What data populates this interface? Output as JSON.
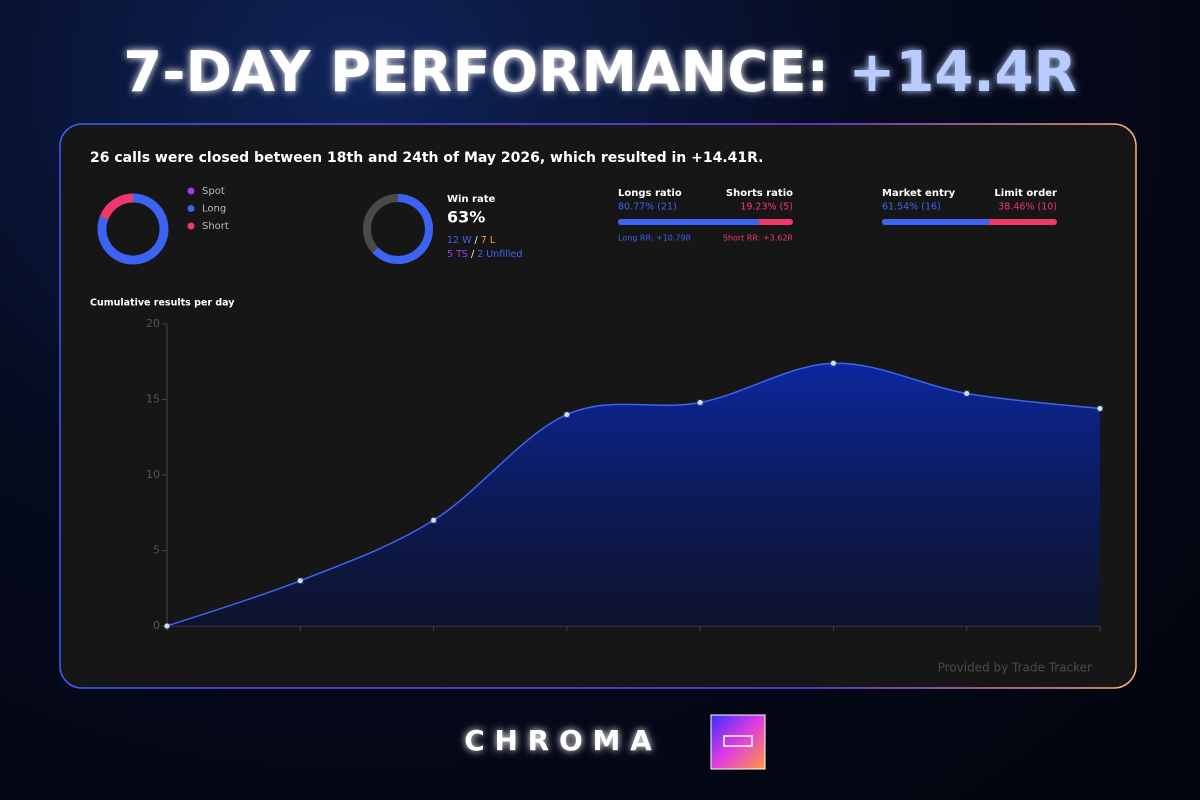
{
  "header": {
    "title": "7-DAY PERFORMANCE:",
    "highlight": "+14.4R"
  },
  "summary": "26 calls were closed between 18th and 24th of May 2026, which resulted in +14.41R.",
  "win_rate": {
    "title": "Win rate",
    "value": 63,
    "value_label": "63%",
    "track_color": "#4a4a4a",
    "color": "#3d63f5",
    "wins": "12 W",
    "losses": "7 L",
    "ts": "5 TS",
    "unfilled": "2 Unfilled",
    "separator": "/"
  },
  "direction_ratio": {
    "left_title": "Longs ratio",
    "right_title": "Shorts ratio",
    "left_value": 80.77,
    "left_label": "80.77% (21)",
    "right_value": 19.23,
    "right_label": "19.23% (5)",
    "left_note": "Long RR: +10.79R",
    "right_note": "Short RR: +3.62R",
    "left_color": "#3d63f5",
    "right_color": "#f0396b"
  },
  "entry_ratio": {
    "left_title": "Market entry",
    "right_title": "Limit order",
    "left_value": 61.54,
    "left_label": "61.54% (16)",
    "right_value": 38.46,
    "right_label": "38.46% (10)",
    "left_color": "#3d63f5",
    "right_color": "#f0396b"
  },
  "chart_data": [
    {
      "type": "pie",
      "categories": [
        "Spot",
        "Long",
        "Short"
      ],
      "values": [
        0,
        80.77,
        19.23
      ],
      "colors": [
        "#9b3df0",
        "#3d63f5",
        "#f0396b"
      ]
    },
    {
      "type": "line",
      "title": "Cumulative results per day",
      "categories": [
        null,
        null,
        null,
        null,
        null,
        null,
        null,
        null
      ],
      "values": [
        0,
        3,
        7,
        14,
        14.8,
        17.4,
        15.4,
        14.4
      ],
      "color": "#3d63f5",
      "ylim": [
        0,
        20
      ],
      "yticks": [
        0,
        5,
        10,
        15,
        20
      ]
    }
  ],
  "footer": "Provided by Trade Tracker",
  "brand": "C H R O M A"
}
